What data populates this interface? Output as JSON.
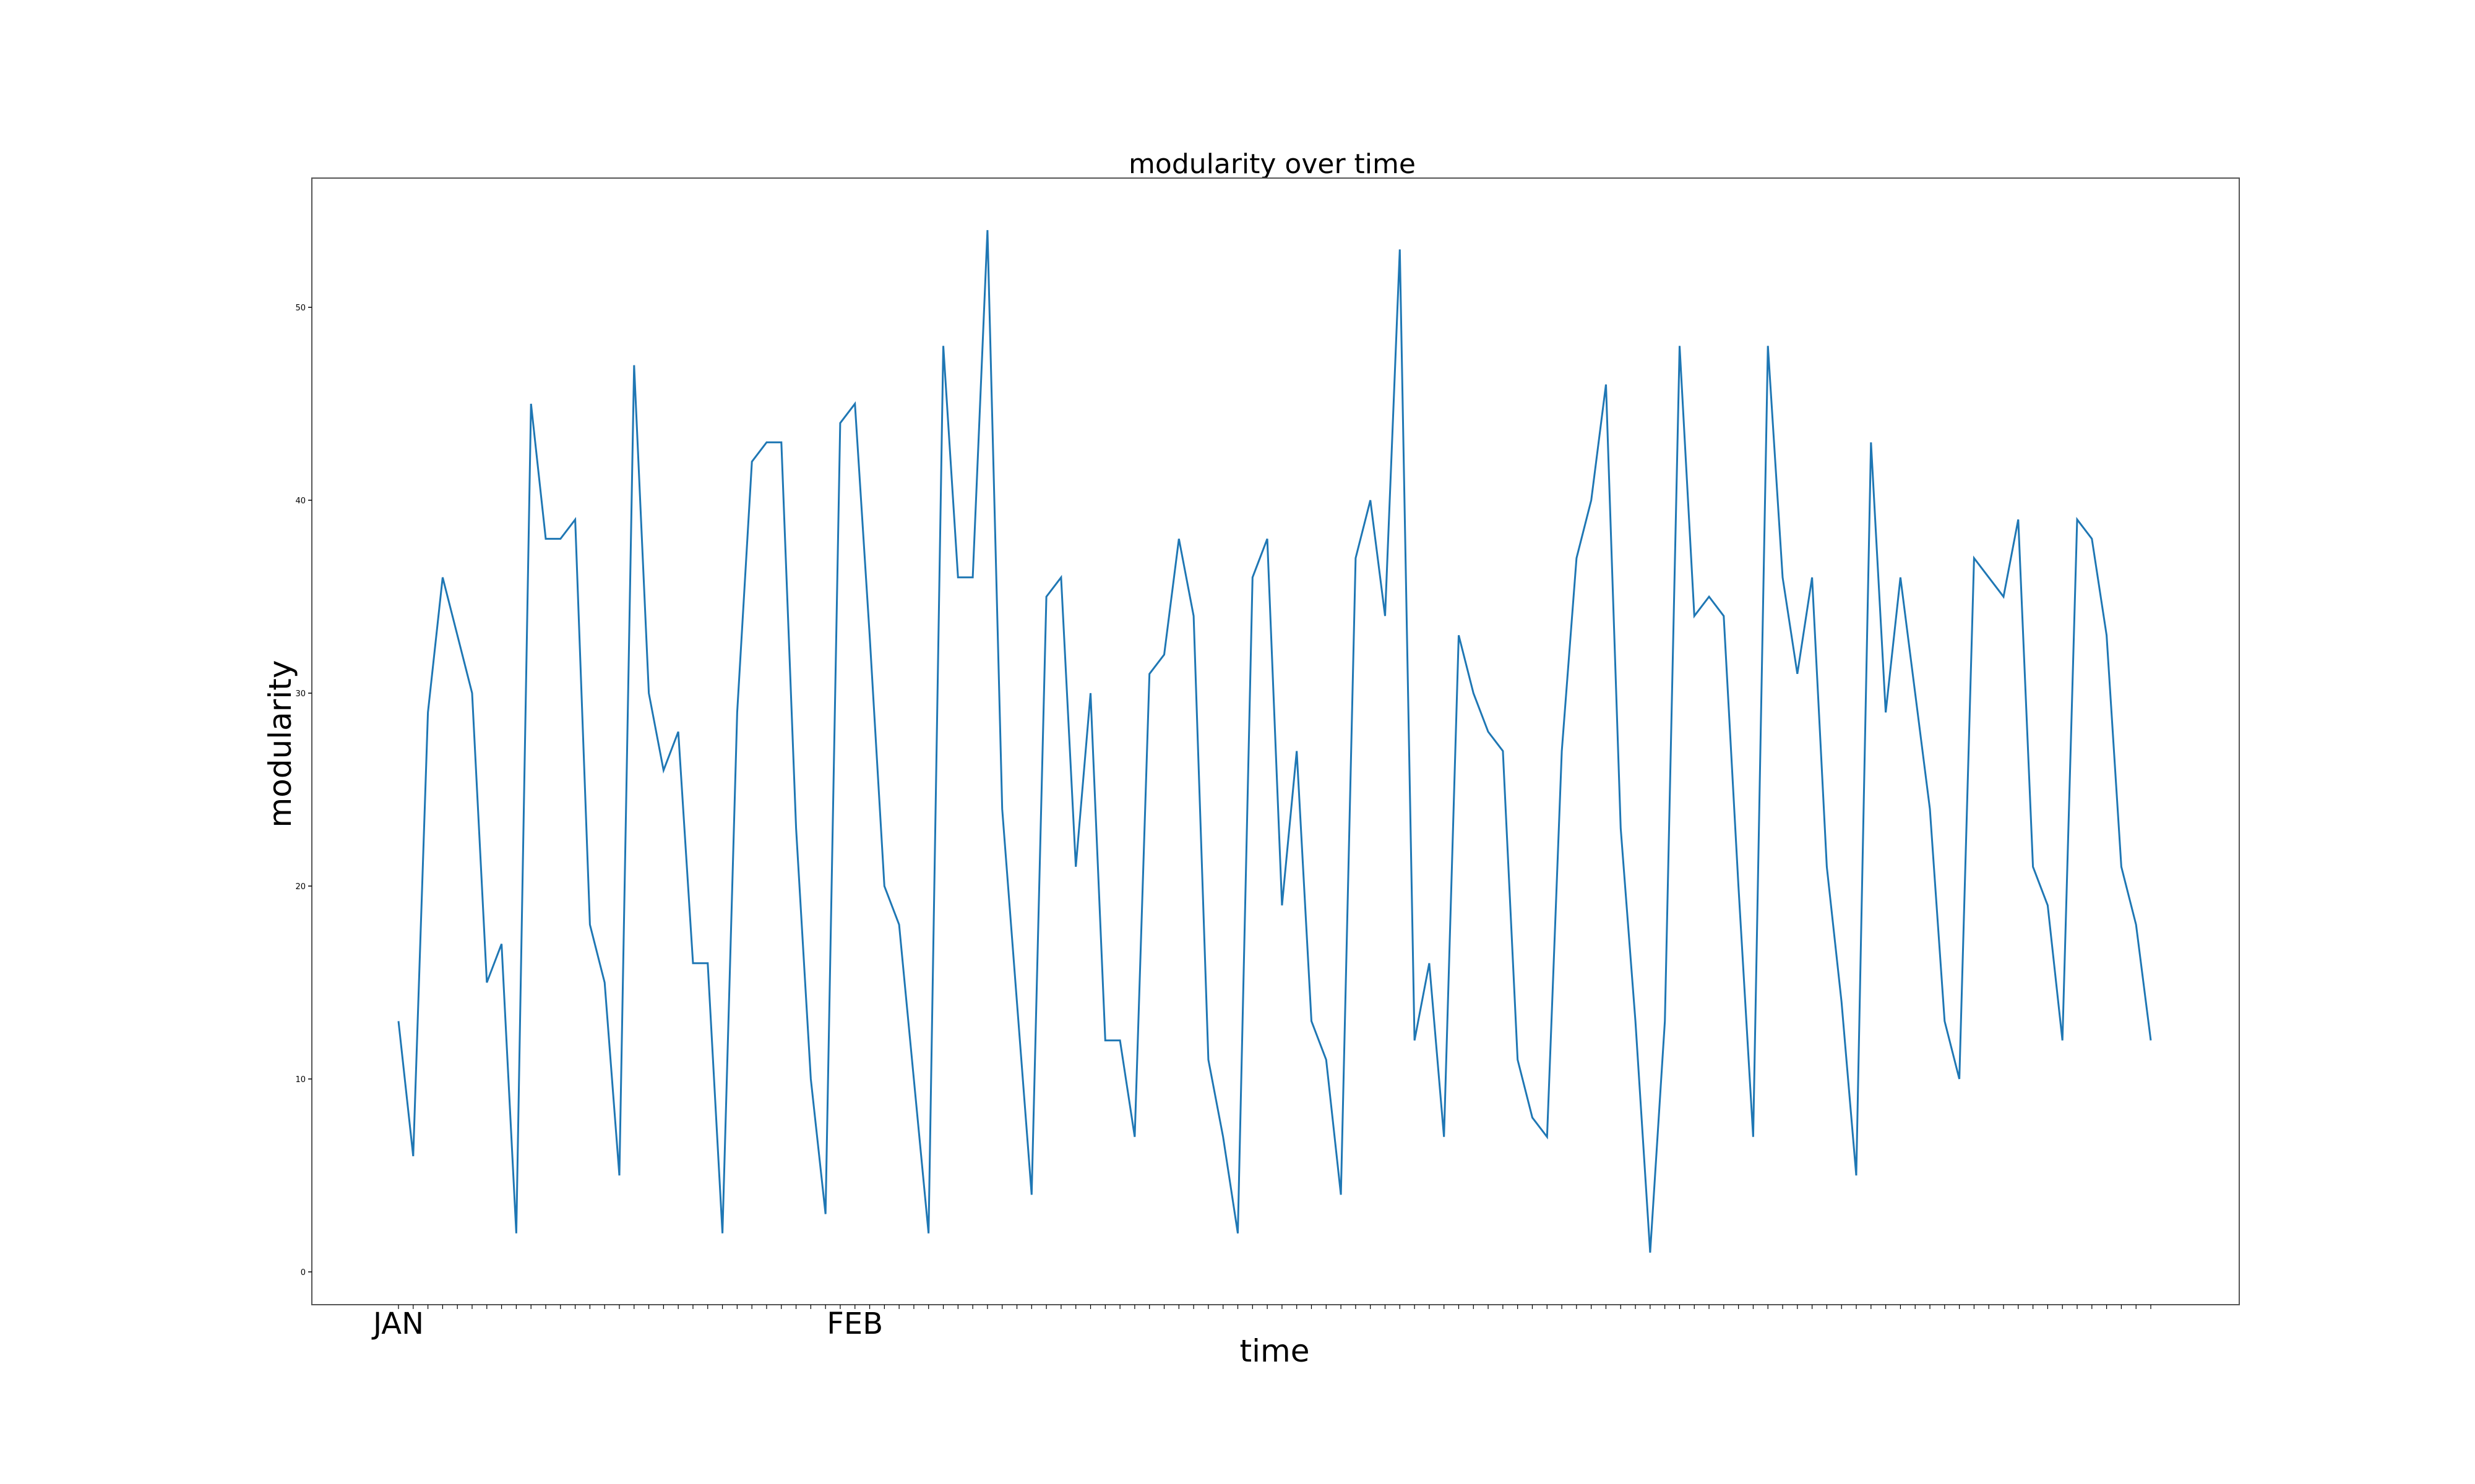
{
  "chart_data": {
    "type": "line",
    "title": "modularity over time",
    "xlabel": "time",
    "ylabel": "modularity",
    "x_tick_labels": [
      {
        "index": 0,
        "label": "JAN"
      },
      {
        "index": 31,
        "label": "FEB"
      }
    ],
    "yticks": [
      "0",
      "10",
      "20",
      "30",
      "40",
      "50"
    ],
    "ylim": [
      -1.7,
      56.7
    ],
    "grid": false,
    "series": [
      {
        "color": "#1f77b4",
        "values": [
          13,
          6,
          29,
          36,
          33,
          30,
          15,
          17,
          2,
          45,
          38,
          38,
          39,
          18,
          15,
          5,
          47,
          30,
          26,
          28,
          16,
          16,
          2,
          29,
          42,
          43,
          43,
          23,
          10,
          3,
          44,
          45,
          33,
          20,
          18,
          10,
          2,
          48,
          36,
          36,
          54,
          24,
          14,
          4,
          35,
          36,
          21,
          30,
          12,
          12,
          7,
          31,
          32,
          38,
          34,
          11,
          7,
          2,
          36,
          38,
          19,
          27,
          13,
          11,
          4,
          37,
          40,
          34,
          53,
          12,
          16,
          7,
          33,
          30,
          28,
          27,
          11,
          8,
          7,
          27,
          37,
          40,
          46,
          23,
          13,
          1,
          13,
          48,
          34,
          35,
          34,
          20,
          7,
          48,
          36,
          31,
          36,
          21,
          14,
          5,
          43,
          29,
          36,
          30,
          24,
          13,
          10,
          37,
          36,
          35,
          39,
          21,
          19,
          12,
          39,
          38,
          33,
          21,
          18,
          12
        ]
      }
    ]
  }
}
